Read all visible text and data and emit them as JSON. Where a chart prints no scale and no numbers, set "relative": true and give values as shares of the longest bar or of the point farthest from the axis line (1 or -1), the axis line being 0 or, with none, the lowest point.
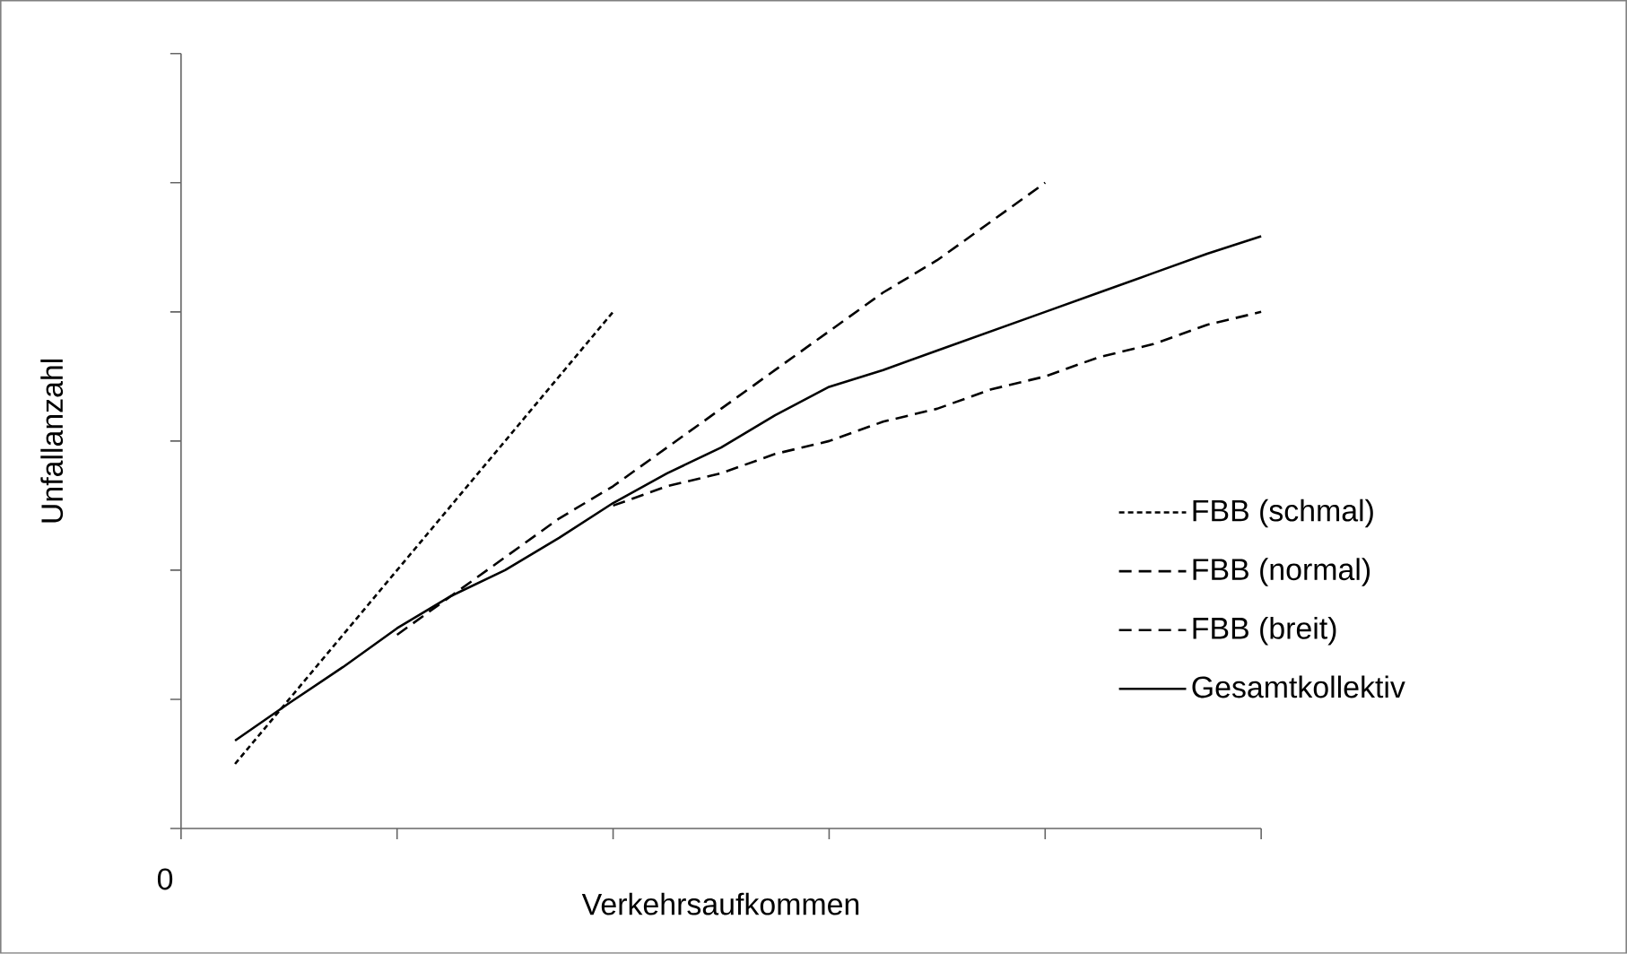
{
  "chart_data": {
    "type": "line",
    "relative": true,
    "xlabel": "Verkehrsaufkommen",
    "ylabel": "Unfallanzahl",
    "categories": [
      null,
      null,
      null,
      null,
      null,
      null,
      null,
      null,
      null,
      null,
      null,
      null,
      null,
      null,
      null,
      null,
      null,
      null,
      null,
      null,
      null
    ],
    "annotations": [
      "0"
    ],
    "legend": "right",
    "series": [
      {
        "name": "FBB (schmal)",
        "color": "#000000",
        "line_style": "dotted",
        "values": [
          null,
          0.1,
          0.2,
          0.3,
          0.4,
          0.5,
          0.6,
          0.7,
          0.8,
          null,
          null,
          null,
          null,
          null,
          null,
          null,
          null,
          null,
          null,
          null,
          null
        ]
      },
      {
        "name": "FBB (normal)",
        "color": "#000000",
        "line_style": "dashed",
        "values": [
          null,
          null,
          null,
          null,
          0.3,
          0.36,
          0.42,
          0.48,
          0.53,
          0.59,
          0.65,
          0.71,
          0.77,
          0.83,
          0.88,
          0.94,
          1.0,
          null,
          null,
          null,
          null
        ]
      },
      {
        "name": "FBB (breit)",
        "color": "#000000",
        "line_style": "dashed",
        "values": [
          null,
          null,
          null,
          null,
          null,
          null,
          null,
          null,
          0.5,
          0.53,
          0.55,
          0.58,
          0.6,
          0.63,
          0.65,
          0.68,
          0.7,
          0.73,
          0.75,
          0.78,
          0.8
        ]
      },
      {
        "name": "Gesamtkollektiv",
        "color": "#000000",
        "line_style": "solid",
        "values": [
          null,
          0.136,
          0.194,
          0.25,
          0.31,
          0.36,
          0.4,
          0.45,
          0.504,
          0.55,
          0.59,
          0.64,
          0.684,
          0.71,
          0.74,
          0.77,
          0.8,
          0.83,
          0.86,
          0.89,
          0.917
        ]
      }
    ]
  }
}
